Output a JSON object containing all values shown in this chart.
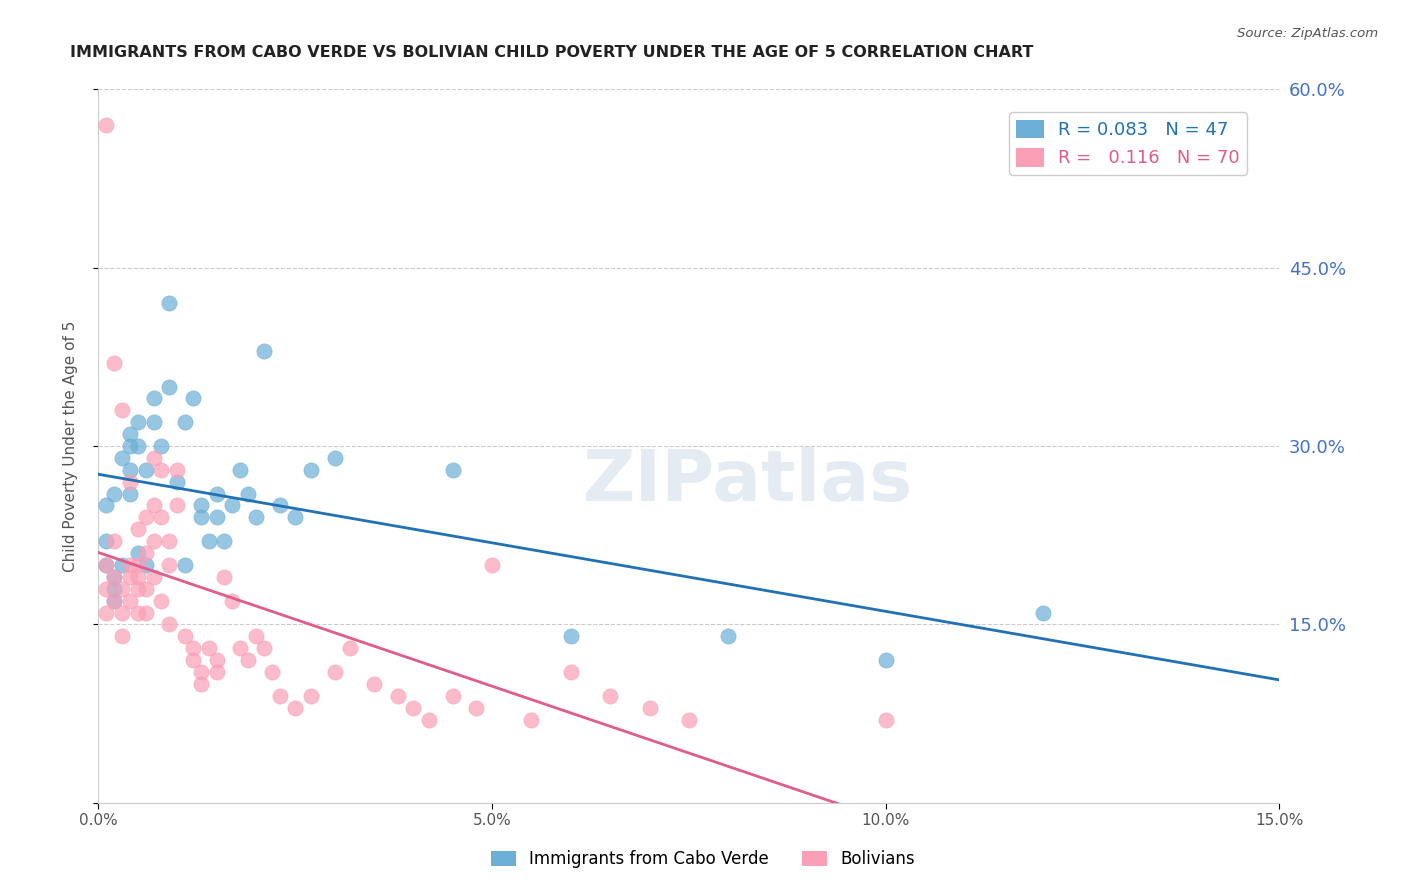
{
  "title": "IMMIGRANTS FROM CABO VERDE VS BOLIVIAN CHILD POVERTY UNDER THE AGE OF 5 CORRELATION CHART",
  "source_text": "Source: ZipAtlas.com",
  "xlabel_bottom": "",
  "ylabel": "Child Poverty Under the Age of 5",
  "x_min": 0.0,
  "x_max": 0.15,
  "y_min": 0.0,
  "y_max": 0.6,
  "x_ticks": [
    0.0,
    0.05,
    0.1,
    0.15
  ],
  "x_tick_labels": [
    "0.0%",
    "5.0%",
    "10.0%",
    "15.0%"
  ],
  "y_ticks": [
    0.0,
    0.15,
    0.3,
    0.45,
    0.6
  ],
  "y_tick_labels_right": [
    "",
    "15.0%",
    "30.0%",
    "45.0%",
    "60.0%"
  ],
  "grid_color": "#cccccc",
  "background_color": "#ffffff",
  "blue_color": "#6baed6",
  "pink_color": "#fa9fb5",
  "blue_line_color": "#2171b5",
  "pink_line_color": "#e05c8a",
  "legend_R1": "0.083",
  "legend_N1": "47",
  "legend_R2": "0.116",
  "legend_N2": "70",
  "watermark": "ZIPatlas",
  "cabo_verde_x": [
    0.001,
    0.002,
    0.001,
    0.001,
    0.002,
    0.003,
    0.002,
    0.002,
    0.004,
    0.003,
    0.004,
    0.005,
    0.004,
    0.004,
    0.005,
    0.006,
    0.005,
    0.006,
    0.007,
    0.007,
    0.008,
    0.009,
    0.009,
    0.01,
    0.011,
    0.012,
    0.011,
    0.013,
    0.014,
    0.015,
    0.013,
    0.015,
    0.016,
    0.017,
    0.018,
    0.019,
    0.02,
    0.021,
    0.023,
    0.025,
    0.027,
    0.03,
    0.045,
    0.06,
    0.08,
    0.1,
    0.12
  ],
  "cabo_verde_y": [
    0.25,
    0.26,
    0.22,
    0.2,
    0.18,
    0.2,
    0.17,
    0.19,
    0.3,
    0.29,
    0.28,
    0.32,
    0.31,
    0.26,
    0.3,
    0.28,
    0.21,
    0.2,
    0.32,
    0.34,
    0.3,
    0.42,
    0.35,
    0.27,
    0.32,
    0.34,
    0.2,
    0.24,
    0.22,
    0.24,
    0.25,
    0.26,
    0.22,
    0.25,
    0.28,
    0.26,
    0.24,
    0.38,
    0.25,
    0.24,
    0.28,
    0.29,
    0.28,
    0.14,
    0.14,
    0.12,
    0.16
  ],
  "bolivian_x": [
    0.001,
    0.001,
    0.001,
    0.002,
    0.002,
    0.002,
    0.003,
    0.003,
    0.003,
    0.004,
    0.004,
    0.004,
    0.005,
    0.005,
    0.005,
    0.005,
    0.006,
    0.006,
    0.006,
    0.007,
    0.007,
    0.007,
    0.008,
    0.008,
    0.009,
    0.009,
    0.01,
    0.01,
    0.011,
    0.012,
    0.012,
    0.013,
    0.013,
    0.014,
    0.015,
    0.015,
    0.016,
    0.017,
    0.018,
    0.019,
    0.02,
    0.021,
    0.022,
    0.023,
    0.025,
    0.027,
    0.03,
    0.032,
    0.035,
    0.038,
    0.04,
    0.042,
    0.045,
    0.048,
    0.05,
    0.055,
    0.06,
    0.065,
    0.07,
    0.075,
    0.001,
    0.002,
    0.003,
    0.004,
    0.005,
    0.006,
    0.007,
    0.008,
    0.009,
    0.1
  ],
  "bolivian_y": [
    0.2,
    0.18,
    0.16,
    0.22,
    0.19,
    0.17,
    0.18,
    0.16,
    0.14,
    0.2,
    0.19,
    0.17,
    0.23,
    0.2,
    0.18,
    0.16,
    0.21,
    0.18,
    0.16,
    0.29,
    0.25,
    0.22,
    0.28,
    0.24,
    0.22,
    0.2,
    0.28,
    0.25,
    0.14,
    0.13,
    0.12,
    0.11,
    0.1,
    0.13,
    0.12,
    0.11,
    0.19,
    0.17,
    0.13,
    0.12,
    0.14,
    0.13,
    0.11,
    0.09,
    0.08,
    0.09,
    0.11,
    0.13,
    0.1,
    0.09,
    0.08,
    0.07,
    0.09,
    0.08,
    0.2,
    0.07,
    0.11,
    0.09,
    0.08,
    0.07,
    0.57,
    0.37,
    0.33,
    0.27,
    0.19,
    0.24,
    0.19,
    0.17,
    0.15,
    0.07
  ]
}
